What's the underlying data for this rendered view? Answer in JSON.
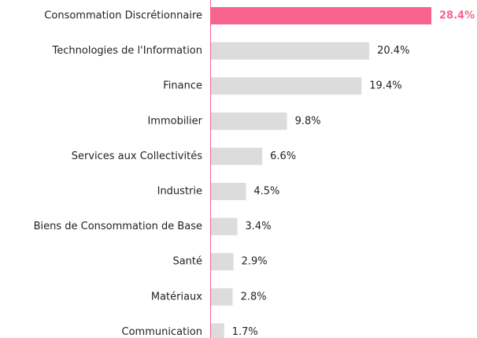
{
  "chart_data": {
    "type": "bar",
    "orientation": "horizontal",
    "categories": [
      "Consommation Discrétionnaire",
      "Technologies de l'Information",
      "Finance",
      "Immobilier",
      "Services aux Collectivités",
      "Industrie",
      "Biens de Consommation de Base",
      "Santé",
      "Matériaux",
      "Communication"
    ],
    "values": [
      28.4,
      20.4,
      19.4,
      9.8,
      6.6,
      4.5,
      3.4,
      2.9,
      2.8,
      1.7
    ],
    "value_labels": [
      "28.4%",
      "20.4%",
      "19.4%",
      "9.8%",
      "6.6%",
      "4.5%",
      "3.4%",
      "2.9%",
      "2.8%",
      "1.7%"
    ],
    "color": "#dcdcdc",
    "highlight": {
      "index": 0,
      "color": "#f7648f"
    }
  }
}
